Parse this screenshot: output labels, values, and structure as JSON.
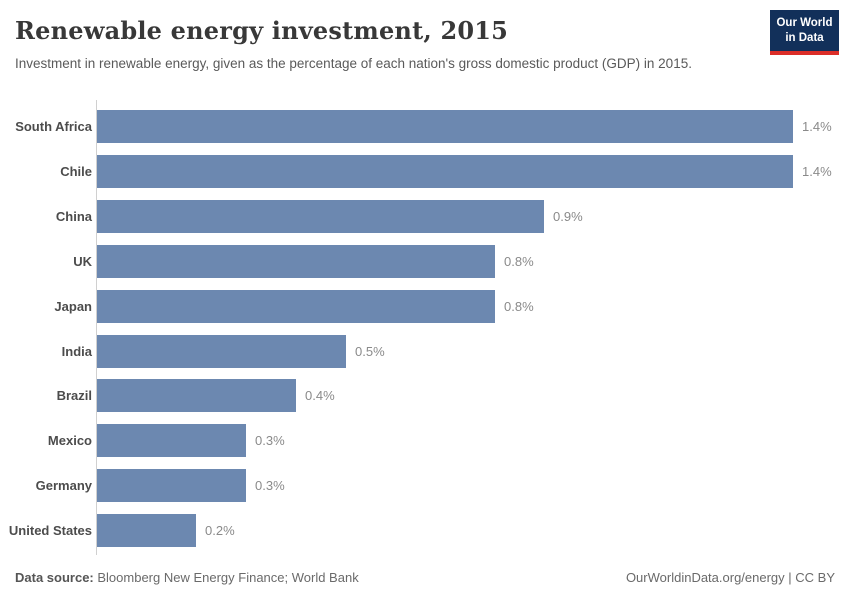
{
  "header": {
    "title": "Renewable energy investment, 2015",
    "subtitle": "Investment in renewable energy, given as the percentage of each nation's gross domestic product (GDP) in 2015."
  },
  "logo": {
    "line1": "Our World",
    "line2": "in Data"
  },
  "chart_data": {
    "type": "bar",
    "orientation": "horizontal",
    "title": "Renewable energy investment, 2015",
    "categories": [
      "South Africa",
      "Chile",
      "China",
      "UK",
      "Japan",
      "India",
      "Brazil",
      "Mexico",
      "Germany",
      "United States"
    ],
    "values": [
      1.4,
      1.4,
      0.9,
      0.8,
      0.8,
      0.5,
      0.4,
      0.3,
      0.3,
      0.2
    ],
    "value_labels": [
      "1.4%",
      "1.4%",
      "0.9%",
      "0.8%",
      "0.8%",
      "0.5%",
      "0.4%",
      "0.3%",
      "0.3%",
      "0.2%"
    ],
    "xlim": [
      0,
      1.4
    ],
    "grid": false,
    "legend": "none",
    "bar_color": "#6c88b0"
  },
  "footer": {
    "source_label": "Data source:",
    "source_text": " Bloomberg New Energy Finance; World Bank",
    "right_text": "OurWorldinData.org/energy | CC BY"
  },
  "colors": {
    "bar": "#6c88b0",
    "logo_navy": "#12305a",
    "logo_red": "#dc2e28",
    "axis": "#d0d0d0"
  }
}
